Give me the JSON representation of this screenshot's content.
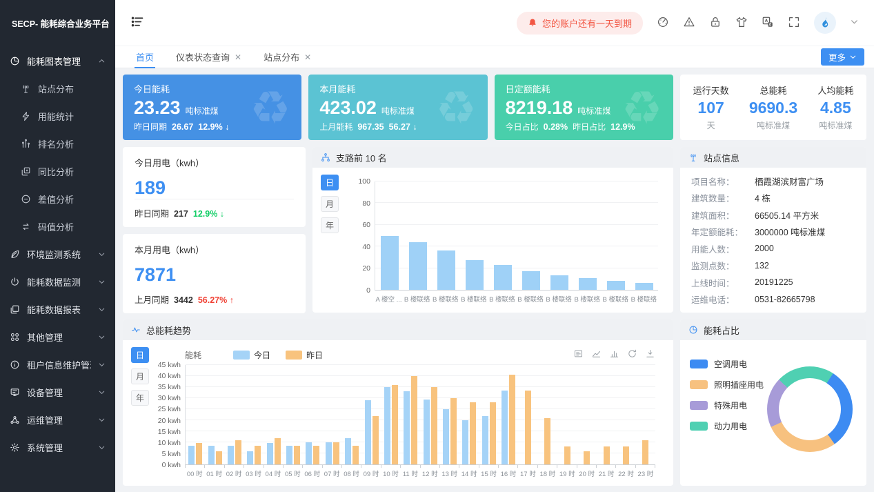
{
  "colors": {
    "accent": "#3d8ff2",
    "green": "#13ce66",
    "red": "#f04134"
  },
  "app": {
    "logo_title": "SECP- 能耗综合业务平台"
  },
  "header": {
    "alert_text": "您的账户还有一天到期",
    "icons": [
      "dashboard-icon",
      "warning-icon",
      "lock-icon",
      "tshirt-icon",
      "translate-icon",
      "fullscreen-icon"
    ]
  },
  "tabs": {
    "items": [
      {
        "label": "首页",
        "active": true,
        "closable": false
      },
      {
        "label": "仪表状态查询",
        "active": false,
        "closable": true
      },
      {
        "label": "站点分布",
        "active": false,
        "closable": true
      }
    ],
    "more_label": "更多"
  },
  "sidebar": {
    "menu": [
      {
        "label": "能耗图表管理",
        "icon": "pie-chart-icon",
        "expanded": true,
        "active": true,
        "children": [
          {
            "label": "站点分布",
            "icon": "antenna-icon"
          },
          {
            "label": "用能统计",
            "icon": "bolt-icon"
          },
          {
            "label": "排名分析",
            "icon": "ranking-icon"
          },
          {
            "label": "同比分析",
            "icon": "compare-icon"
          },
          {
            "label": "差值分析",
            "icon": "minus-circle-icon"
          },
          {
            "label": "码值分析",
            "icon": "swap-icon"
          }
        ]
      },
      {
        "label": "环境监测系统",
        "icon": "leaf-icon"
      },
      {
        "label": "能耗数据监测",
        "icon": "power-icon"
      },
      {
        "label": "能耗数据报表",
        "icon": "report-icon"
      },
      {
        "label": "其他管理",
        "icon": "grid-icon"
      },
      {
        "label": "租户信息维护管理",
        "icon": "info-icon"
      },
      {
        "label": "设备管理",
        "icon": "monitor-icon"
      },
      {
        "label": "运维管理",
        "icon": "cluster-icon"
      },
      {
        "label": "系统管理",
        "icon": "gear-icon"
      }
    ]
  },
  "stat_cards": [
    {
      "title": "今日能耗",
      "value": "23.23",
      "unit": "吨标准煤",
      "bg": "#4591e4",
      "footer": [
        {
          "t": "昨日同期"
        },
        {
          "t": "26.67",
          "b": true
        },
        {
          "t": "12.9% ↓",
          "b": true
        }
      ]
    },
    {
      "title": "本月能耗",
      "value": "423.02",
      "unit": "吨标准煤",
      "bg": "#5bc3d3",
      "footer": [
        {
          "t": "上月能耗"
        },
        {
          "t": "967.35",
          "b": true
        },
        {
          "t": "56.27 ↓",
          "b": true
        }
      ]
    },
    {
      "title": "日定额能耗",
      "value": "8219.18",
      "unit": "吨标准煤",
      "bg": "#49cfab",
      "footer": [
        {
          "t": "今日占比"
        },
        {
          "t": "0.28%",
          "b": true
        },
        {
          "t": "昨日占比"
        },
        {
          "t": "12.9%",
          "b": true
        }
      ]
    }
  ],
  "summary_card": {
    "items": [
      {
        "label": "运行天数",
        "value": "107",
        "unit": "天"
      },
      {
        "label": "总能耗",
        "value": "9690.3",
        "unit": "吨标准煤"
      },
      {
        "label": "人均能耗",
        "value": "4.85",
        "unit": "吨标准煤"
      }
    ]
  },
  "usage_cards": [
    {
      "title": "今日用电（kwh）",
      "value": "189",
      "divider": true,
      "footer_label": "昨日同期",
      "footer_value": "217",
      "footer_delta": "12.9% ↓",
      "delta_color": "green"
    },
    {
      "title": "本月用电（kwh）",
      "value": "7871",
      "divider": false,
      "footer_label": "上月同期",
      "footer_value": "3442",
      "footer_delta": "56.27% ↑",
      "delta_color": "red"
    }
  ],
  "site_info": {
    "title": "站点信息",
    "rows": [
      {
        "label": "项目名称：",
        "value": "栖霞湖滨财富广场"
      },
      {
        "label": "建筑数量：",
        "value": "4 栋"
      },
      {
        "label": "建筑面积：",
        "value": "66505.14 平方米"
      },
      {
        "label": "年定额能耗：",
        "value": "3000000 吨标准煤"
      },
      {
        "label": "用能人数：",
        "value": "2000"
      },
      {
        "label": "监测点数：",
        "value": "132"
      },
      {
        "label": "上线时间：",
        "value": "20191225"
      },
      {
        "label": "运维电话：",
        "value": "0531-82665798"
      }
    ]
  },
  "chart_data": [
    {
      "id": "branch",
      "type": "bar",
      "title": "支路前 10 名",
      "period_options": [
        "日",
        "月",
        "年"
      ],
      "active_period": "日",
      "categories": [
        "A 楼空 ...",
        "B 楼联络",
        "B 楼联络",
        "B 楼联络",
        "B 楼联络",
        "B 楼联络",
        "B 楼联络",
        "B 楼联络",
        "B 楼联络",
        "B 楼联络"
      ],
      "values": [
        50,
        44,
        36,
        27.5,
        23,
        17,
        13.5,
        11,
        8,
        6.5
      ],
      "ylim": [
        0,
        100
      ],
      "tick_step": 20,
      "bar_color": "#9fd1f7",
      "grid": true
    },
    {
      "id": "trend",
      "type": "grouped-bar",
      "title": "总能耗趋势",
      "axis_name": "能耗",
      "unit": "kwh",
      "period_options": [
        "日",
        "月",
        "年"
      ],
      "active_period": "日",
      "toolbar": [
        "data-view-icon",
        "line-chart-icon",
        "bar-chart-icon",
        "refresh-icon",
        "download-icon"
      ],
      "categories": [
        "00 时",
        "01 时",
        "02 时",
        "03 时",
        "04 时",
        "05 时",
        "06 时",
        "07 时",
        "08 时",
        "09 时",
        "10 时",
        "11 时",
        "12 时",
        "13 时",
        "14 时",
        "15 时",
        "16 时",
        "17 时",
        "18 时",
        "19 时",
        "20 时",
        "21 时",
        "22 时",
        "23 时"
      ],
      "series": [
        {
          "name": "今日",
          "color": "#a5d3f7",
          "values": [
            8.5,
            8.5,
            8.5,
            6,
            9.7,
            8.5,
            10,
            10,
            12,
            29,
            35,
            33,
            29.5,
            25,
            20,
            22,
            33.5,
            null,
            null,
            null,
            null,
            null,
            null,
            null
          ]
        },
        {
          "name": "昨日",
          "color": "#f8c37e",
          "values": [
            9.8,
            6,
            11,
            8.5,
            12,
            8.5,
            8.5,
            10,
            8.5,
            22,
            36,
            40,
            35,
            30,
            28,
            28,
            40.5,
            33.5,
            21,
            8,
            6,
            8,
            8,
            11
          ]
        }
      ],
      "ylim": [
        0,
        45
      ],
      "tick_step": 5,
      "grid": true,
      "legend_position": "top"
    },
    {
      "id": "pie",
      "type": "pie",
      "title": "能耗占比",
      "start_angle": 33,
      "legend_position": "left",
      "slices": [
        {
          "label": "空调用电",
          "value": 31,
          "color": "#3d8bf2"
        },
        {
          "label": "照明插座用电",
          "value": 28,
          "color": "#f7c17f"
        },
        {
          "label": "特殊用电",
          "value": 19,
          "color": "#a79bd8"
        },
        {
          "label": "动力用电",
          "value": 22,
          "color": "#4fd0b2"
        }
      ]
    }
  ]
}
